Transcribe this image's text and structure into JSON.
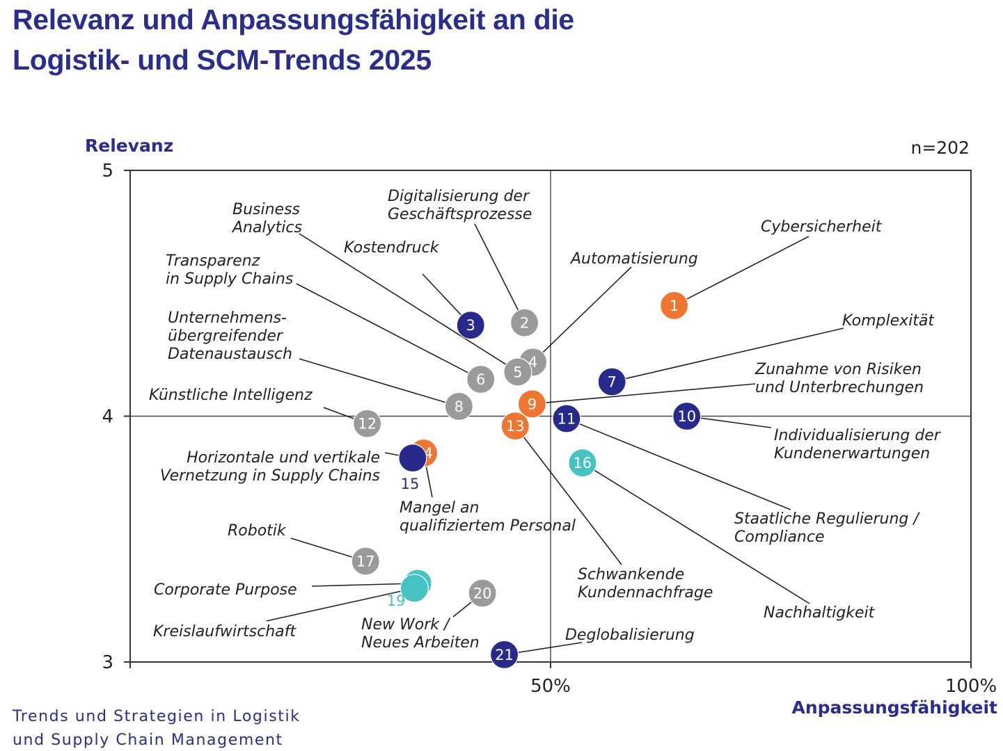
{
  "title": {
    "line1": "Relevanz und Anpassungsfähigkeit an die",
    "line2": "Logistik- und SCM-Trends 2025"
  },
  "footer": {
    "line1": "Trends und Strategien in Logistik",
    "line2": "und Supply Chain Management"
  },
  "colors": {
    "title": "#2b2d8c",
    "navy": "#272a8a",
    "orange": "#ee7630",
    "gray": "#9a9a9a",
    "teal": "#45c3c3"
  },
  "chart_data": {
    "type": "scatter",
    "title": "Relevanz und Anpassungsfähigkeit an die Logistik- und SCM-Trends 2025",
    "ylabel": "Relevanz",
    "xlabel": "Anpassungsfähigkeit",
    "sample_note": "n=202",
    "xlim": [
      0,
      100
    ],
    "ylim": [
      3,
      5
    ],
    "x_ticks": [
      {
        "value": 50,
        "label": "50%"
      },
      {
        "value": 100,
        "label": "100%"
      }
    ],
    "y_ticks": [
      {
        "value": 3,
        "label": "3"
      },
      {
        "value": 4,
        "label": "4"
      },
      {
        "value": 5,
        "label": "5"
      }
    ],
    "crosshair": {
      "x": 50,
      "y": 4
    },
    "points": [
      {
        "id": "1",
        "x": 64.7,
        "y": 4.45,
        "group": "orange",
        "label": [
          "Cybersicherheit"
        ]
      },
      {
        "id": "2",
        "x": 46.9,
        "y": 4.38,
        "group": "gray",
        "label": [
          "Digitalisierung der",
          "Geschäftsprozesse"
        ]
      },
      {
        "id": "3",
        "x": 40.5,
        "y": 4.37,
        "group": "navy",
        "label": [
          "Kostendruck"
        ]
      },
      {
        "id": "4",
        "x": 47.9,
        "y": 4.22,
        "group": "gray",
        "label": [
          "Automatisierung"
        ]
      },
      {
        "id": "5",
        "x": 46.1,
        "y": 4.18,
        "group": "gray",
        "label": [
          "Business",
          "Analytics"
        ]
      },
      {
        "id": "6",
        "x": 41.7,
        "y": 4.15,
        "group": "gray",
        "label": [
          "Transparenz",
          "in Supply Chains"
        ]
      },
      {
        "id": "7",
        "x": 57.3,
        "y": 4.14,
        "group": "navy",
        "label": [
          "Komplexität"
        ]
      },
      {
        "id": "8",
        "x": 39.1,
        "y": 4.04,
        "group": "gray",
        "label": [
          "Unternehmens-",
          "übergreifender",
          "Datenaustausch"
        ]
      },
      {
        "id": "9",
        "x": 47.8,
        "y": 4.05,
        "group": "orange",
        "label": [
          "Zunahme von Risiken",
          "und Unterbrechungen"
        ]
      },
      {
        "id": "10",
        "x": 66.2,
        "y": 4.0,
        "group": "navy",
        "label": [
          "Individualisierung der",
          "Kundenerwartungen"
        ]
      },
      {
        "id": "11",
        "x": 51.9,
        "y": 3.99,
        "group": "navy",
        "label": [
          "Staatliche Regulierung /",
          "Compliance"
        ]
      },
      {
        "id": "12",
        "x": 28.2,
        "y": 3.97,
        "group": "gray",
        "label": [
          "Künstliche Intelligenz"
        ]
      },
      {
        "id": "13",
        "x": 45.8,
        "y": 3.96,
        "group": "orange",
        "label": [
          "Schwankende",
          "Kundennachfrage"
        ]
      },
      {
        "id": "14",
        "x": 34.9,
        "y": 3.85,
        "group": "orange",
        "label": [
          "Mangel an",
          "qualifiziertem Personal"
        ]
      },
      {
        "id": "15",
        "x": 33.6,
        "y": 3.83,
        "group": "navy",
        "label": [
          "Horizontale und vertikale",
          "Vernetzung in Supply Chains"
        ]
      },
      {
        "id": "16",
        "x": 53.8,
        "y": 3.81,
        "group": "teal",
        "label": [
          "Nachhaltigkeit"
        ]
      },
      {
        "id": "17",
        "x": 28.0,
        "y": 3.41,
        "group": "gray",
        "label": [
          "Robotik"
        ]
      },
      {
        "id": "18",
        "x": 34.2,
        "y": 3.32,
        "group": "teal",
        "label": [
          "Corporate Purpose"
        ]
      },
      {
        "id": "19",
        "x": 33.8,
        "y": 3.3,
        "group": "teal",
        "label": [
          "Kreislaufwirtschaft"
        ]
      },
      {
        "id": "20",
        "x": 41.9,
        "y": 3.28,
        "group": "gray",
        "label": [
          "New Work /",
          "Neues Arbeiten"
        ]
      },
      {
        "id": "21",
        "x": 44.5,
        "y": 3.03,
        "group": "navy",
        "label": [
          "Deglobalisierung"
        ]
      }
    ]
  }
}
